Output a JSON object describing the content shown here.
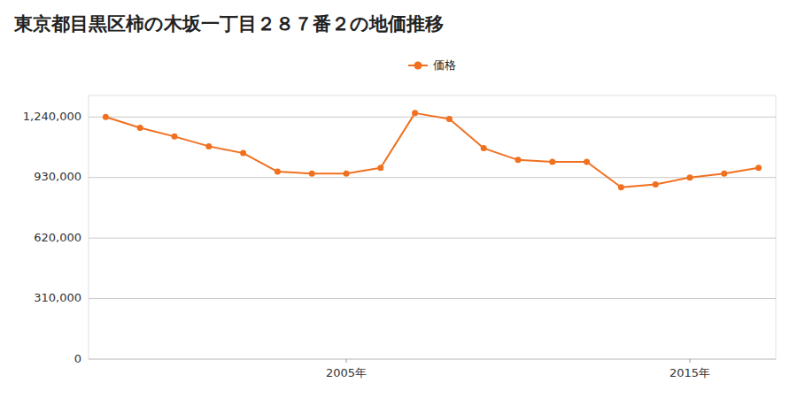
{
  "chart_data": {
    "type": "line",
    "title": "東京都目黒区柿の木坂一丁目２８７番２の地価推移",
    "x": [
      1998,
      1999,
      2000,
      2001,
      2002,
      2003,
      2004,
      2005,
      2006,
      2007,
      2008,
      2009,
      2010,
      2011,
      2012,
      2013,
      2014,
      2015,
      2016,
      2017
    ],
    "series": [
      {
        "name": "価格",
        "color": "#f07020",
        "marker": "circle",
        "values": [
          1240000,
          1185000,
          1140000,
          1090000,
          1055000,
          960000,
          950000,
          950000,
          980000,
          1260000,
          1230000,
          1080000,
          1020000,
          1010000,
          1010000,
          880000,
          895000,
          930000,
          950000,
          980000
        ]
      }
    ],
    "xlim": [
      1997.5,
      2017.5
    ],
    "xticks": [
      {
        "value": 2005,
        "label": "2005年"
      },
      {
        "value": 2015,
        "label": "2015年"
      }
    ],
    "ylim": [
      0,
      1350000
    ],
    "yticks": [
      0,
      {
        "value": 310000,
        "label": "310,000"
      },
      {
        "value": 620000,
        "label": "620,000"
      },
      {
        "value": 930000,
        "label": "930,000"
      },
      {
        "value": 1240000,
        "label": "1,240,000"
      }
    ],
    "grid": true,
    "legend": "top"
  }
}
